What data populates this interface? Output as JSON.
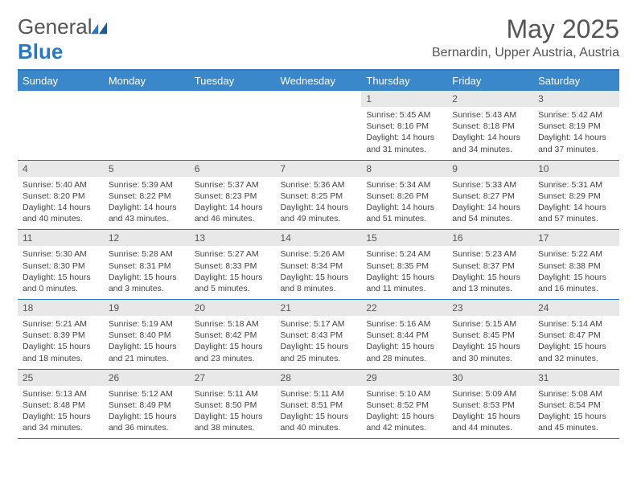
{
  "logo": {
    "word1": "General",
    "word2": "Blue"
  },
  "title": {
    "month": "May 2025",
    "location": "Bernardin, Upper Austria, Austria"
  },
  "colors": {
    "header_bg": "#3a87c9",
    "header_text": "#ffffff",
    "border": "#2b78c2",
    "daynum_bg": "#e8e8e8",
    "body_text": "#444444",
    "logo_gray": "#555555",
    "logo_blue": "#2b78c2"
  },
  "typography": {
    "title_fontsize": 32,
    "location_fontsize": 16,
    "header_fontsize": 13,
    "body_fontsize": 10.5
  },
  "weekdays": [
    "Sunday",
    "Monday",
    "Tuesday",
    "Wednesday",
    "Thursday",
    "Friday",
    "Saturday"
  ],
  "grid": {
    "rows": 5,
    "cols": 7,
    "first_weekday_index": 4,
    "days_in_month": 31
  },
  "days": {
    "1": {
      "sunrise": "Sunrise: 5:45 AM",
      "sunset": "Sunset: 8:16 PM",
      "day1": "Daylight: 14 hours",
      "day2": "and 31 minutes."
    },
    "2": {
      "sunrise": "Sunrise: 5:43 AM",
      "sunset": "Sunset: 8:18 PM",
      "day1": "Daylight: 14 hours",
      "day2": "and 34 minutes."
    },
    "3": {
      "sunrise": "Sunrise: 5:42 AM",
      "sunset": "Sunset: 8:19 PM",
      "day1": "Daylight: 14 hours",
      "day2": "and 37 minutes."
    },
    "4": {
      "sunrise": "Sunrise: 5:40 AM",
      "sunset": "Sunset: 8:20 PM",
      "day1": "Daylight: 14 hours",
      "day2": "and 40 minutes."
    },
    "5": {
      "sunrise": "Sunrise: 5:39 AM",
      "sunset": "Sunset: 8:22 PM",
      "day1": "Daylight: 14 hours",
      "day2": "and 43 minutes."
    },
    "6": {
      "sunrise": "Sunrise: 5:37 AM",
      "sunset": "Sunset: 8:23 PM",
      "day1": "Daylight: 14 hours",
      "day2": "and 46 minutes."
    },
    "7": {
      "sunrise": "Sunrise: 5:36 AM",
      "sunset": "Sunset: 8:25 PM",
      "day1": "Daylight: 14 hours",
      "day2": "and 49 minutes."
    },
    "8": {
      "sunrise": "Sunrise: 5:34 AM",
      "sunset": "Sunset: 8:26 PM",
      "day1": "Daylight: 14 hours",
      "day2": "and 51 minutes."
    },
    "9": {
      "sunrise": "Sunrise: 5:33 AM",
      "sunset": "Sunset: 8:27 PM",
      "day1": "Daylight: 14 hours",
      "day2": "and 54 minutes."
    },
    "10": {
      "sunrise": "Sunrise: 5:31 AM",
      "sunset": "Sunset: 8:29 PM",
      "day1": "Daylight: 14 hours",
      "day2": "and 57 minutes."
    },
    "11": {
      "sunrise": "Sunrise: 5:30 AM",
      "sunset": "Sunset: 8:30 PM",
      "day1": "Daylight: 15 hours",
      "day2": "and 0 minutes."
    },
    "12": {
      "sunrise": "Sunrise: 5:28 AM",
      "sunset": "Sunset: 8:31 PM",
      "day1": "Daylight: 15 hours",
      "day2": "and 3 minutes."
    },
    "13": {
      "sunrise": "Sunrise: 5:27 AM",
      "sunset": "Sunset: 8:33 PM",
      "day1": "Daylight: 15 hours",
      "day2": "and 5 minutes."
    },
    "14": {
      "sunrise": "Sunrise: 5:26 AM",
      "sunset": "Sunset: 8:34 PM",
      "day1": "Daylight: 15 hours",
      "day2": "and 8 minutes."
    },
    "15": {
      "sunrise": "Sunrise: 5:24 AM",
      "sunset": "Sunset: 8:35 PM",
      "day1": "Daylight: 15 hours",
      "day2": "and 11 minutes."
    },
    "16": {
      "sunrise": "Sunrise: 5:23 AM",
      "sunset": "Sunset: 8:37 PM",
      "day1": "Daylight: 15 hours",
      "day2": "and 13 minutes."
    },
    "17": {
      "sunrise": "Sunrise: 5:22 AM",
      "sunset": "Sunset: 8:38 PM",
      "day1": "Daylight: 15 hours",
      "day2": "and 16 minutes."
    },
    "18": {
      "sunrise": "Sunrise: 5:21 AM",
      "sunset": "Sunset: 8:39 PM",
      "day1": "Daylight: 15 hours",
      "day2": "and 18 minutes."
    },
    "19": {
      "sunrise": "Sunrise: 5:19 AM",
      "sunset": "Sunset: 8:40 PM",
      "day1": "Daylight: 15 hours",
      "day2": "and 21 minutes."
    },
    "20": {
      "sunrise": "Sunrise: 5:18 AM",
      "sunset": "Sunset: 8:42 PM",
      "day1": "Daylight: 15 hours",
      "day2": "and 23 minutes."
    },
    "21": {
      "sunrise": "Sunrise: 5:17 AM",
      "sunset": "Sunset: 8:43 PM",
      "day1": "Daylight: 15 hours",
      "day2": "and 25 minutes."
    },
    "22": {
      "sunrise": "Sunrise: 5:16 AM",
      "sunset": "Sunset: 8:44 PM",
      "day1": "Daylight: 15 hours",
      "day2": "and 28 minutes."
    },
    "23": {
      "sunrise": "Sunrise: 5:15 AM",
      "sunset": "Sunset: 8:45 PM",
      "day1": "Daylight: 15 hours",
      "day2": "and 30 minutes."
    },
    "24": {
      "sunrise": "Sunrise: 5:14 AM",
      "sunset": "Sunset: 8:47 PM",
      "day1": "Daylight: 15 hours",
      "day2": "and 32 minutes."
    },
    "25": {
      "sunrise": "Sunrise: 5:13 AM",
      "sunset": "Sunset: 8:48 PM",
      "day1": "Daylight: 15 hours",
      "day2": "and 34 minutes."
    },
    "26": {
      "sunrise": "Sunrise: 5:12 AM",
      "sunset": "Sunset: 8:49 PM",
      "day1": "Daylight: 15 hours",
      "day2": "and 36 minutes."
    },
    "27": {
      "sunrise": "Sunrise: 5:11 AM",
      "sunset": "Sunset: 8:50 PM",
      "day1": "Daylight: 15 hours",
      "day2": "and 38 minutes."
    },
    "28": {
      "sunrise": "Sunrise: 5:11 AM",
      "sunset": "Sunset: 8:51 PM",
      "day1": "Daylight: 15 hours",
      "day2": "and 40 minutes."
    },
    "29": {
      "sunrise": "Sunrise: 5:10 AM",
      "sunset": "Sunset: 8:52 PM",
      "day1": "Daylight: 15 hours",
      "day2": "and 42 minutes."
    },
    "30": {
      "sunrise": "Sunrise: 5:09 AM",
      "sunset": "Sunset: 8:53 PM",
      "day1": "Daylight: 15 hours",
      "day2": "and 44 minutes."
    },
    "31": {
      "sunrise": "Sunrise: 5:08 AM",
      "sunset": "Sunset: 8:54 PM",
      "day1": "Daylight: 15 hours",
      "day2": "and 45 minutes."
    }
  }
}
